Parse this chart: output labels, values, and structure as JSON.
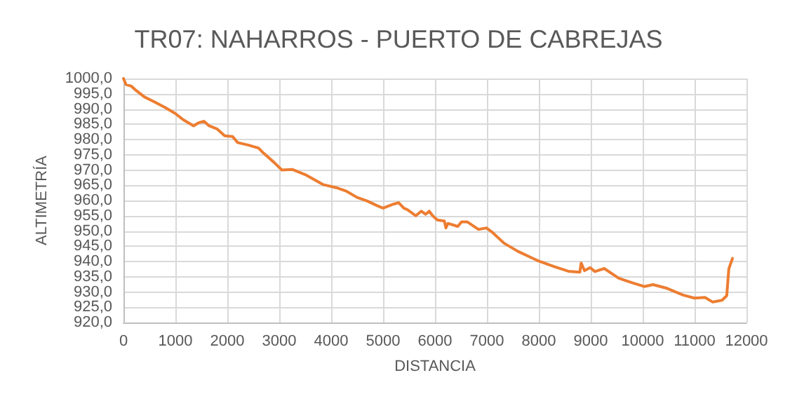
{
  "chart_data": {
    "type": "line",
    "title": "TR07: NAHARROS - PUERTO DE CABREJAS",
    "xlabel": "DISTANCIA",
    "ylabel": "ALTIMETRÍA",
    "grid": true,
    "marker": "none",
    "line_style": "solid",
    "xlim": [
      0,
      12000
    ],
    "xticks": [
      0,
      1000,
      2000,
      3000,
      4000,
      5000,
      6000,
      7000,
      8000,
      9000,
      10000,
      11000,
      12000
    ],
    "ylim": [
      920,
      1000
    ],
    "yticks": [
      {
        "value": 920,
        "label": "920,0"
      },
      {
        "value": 925,
        "label": "925,0"
      },
      {
        "value": 930,
        "label": "930,0"
      },
      {
        "value": 935,
        "label": "935,0"
      },
      {
        "value": 940,
        "label": "940,0"
      },
      {
        "value": 945,
        "label": "945,0"
      },
      {
        "value": 950,
        "label": "950,0"
      },
      {
        "value": 955,
        "label": "955,0"
      },
      {
        "value": 960,
        "label": "960,0"
      },
      {
        "value": 965,
        "label": "965,0"
      },
      {
        "value": 970,
        "label": "970,0"
      },
      {
        "value": 975,
        "label": "975,0"
      },
      {
        "value": 980,
        "label": "980,0"
      },
      {
        "value": 985,
        "label": "985,0"
      },
      {
        "value": 990,
        "label": "990,0"
      },
      {
        "value": 995,
        "label": "995,0"
      },
      {
        "value": 1000,
        "label": "1000,0"
      }
    ],
    "series": [
      {
        "color": "#ed7d31",
        "x": [
          0,
          50,
          150,
          250,
          400,
          600,
          800,
          1000,
          1150,
          1350,
          1450,
          1550,
          1650,
          1800,
          1950,
          2100,
          2200,
          2400,
          2600,
          2700,
          2900,
          3050,
          3250,
          3500,
          3850,
          4100,
          4300,
          4500,
          4700,
          4900,
          5000,
          5200,
          5300,
          5400,
          5470,
          5630,
          5735,
          5820,
          5890,
          5955,
          6045,
          6180,
          6210,
          6250,
          6440,
          6510,
          6620,
          6840,
          6990,
          7110,
          7330,
          7600,
          7990,
          8300,
          8570,
          8790,
          8815,
          8880,
          8990,
          9080,
          9260,
          9540,
          9800,
          10030,
          10200,
          10470,
          10780,
          11000,
          11200,
          11350,
          11530,
          11620,
          11660,
          11730
        ],
        "values": [
          1000,
          998,
          997.5,
          996,
          994,
          992.3,
          990.5,
          988.5,
          986.5,
          984.5,
          985.5,
          986,
          984.5,
          983.5,
          981.2,
          981,
          979,
          978.2,
          977.2,
          975.5,
          972.5,
          970,
          970.2,
          968.5,
          965.2,
          964.2,
          963,
          961,
          959.8,
          958.2,
          957.5,
          958.8,
          959.3,
          957.5,
          957,
          955,
          956.5,
          955.5,
          956.5,
          955,
          953.6,
          953.3,
          951,
          952.5,
          951.5,
          953,
          953,
          950.5,
          951,
          949.5,
          946,
          943.3,
          940.2,
          938.3,
          936.8,
          936.5,
          939.5,
          937,
          938,
          936.7,
          937.7,
          934.5,
          933,
          931.8,
          932.4,
          931.2,
          929,
          928,
          928.2,
          926.7,
          927.3,
          928.8,
          937.6,
          941
        ]
      }
    ]
  }
}
